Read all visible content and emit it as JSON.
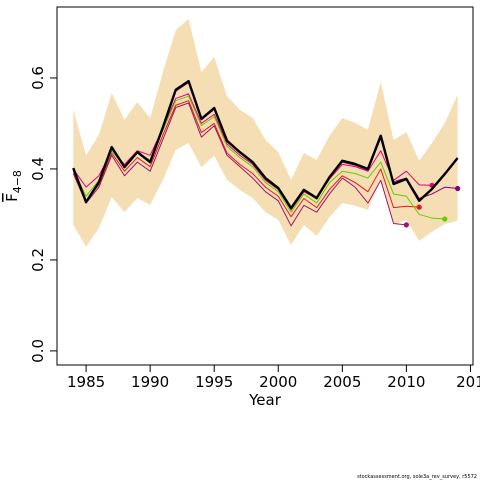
{
  "chart_data": {
    "type": "line",
    "xlabel": "Year",
    "ylabel": "F",
    "ylabel_subscript": "4−8",
    "footer": "stockassessment.org, sole3a_rev_survey, r5572",
    "x": [
      1984,
      1985,
      1986,
      1987,
      1988,
      1989,
      1990,
      1991,
      1992,
      1993,
      1994,
      1995,
      1996,
      1997,
      1998,
      1999,
      2000,
      2001,
      2002,
      2003,
      2004,
      2005,
      2006,
      2007,
      2008,
      2009,
      2010,
      2011,
      2012,
      2013,
      2014
    ],
    "band": {
      "color": "#f5deb3",
      "upper": [
        0.53,
        0.43,
        0.475,
        0.567,
        0.508,
        0.547,
        0.512,
        0.613,
        0.705,
        0.73,
        0.613,
        0.646,
        0.56,
        0.53,
        0.512,
        0.464,
        0.437,
        0.376,
        0.435,
        0.42,
        0.473,
        0.512,
        0.501,
        0.486,
        0.591,
        0.464,
        0.481,
        0.418,
        0.457,
        0.501,
        0.563
      ],
      "lower": [
        0.277,
        0.229,
        0.27,
        0.338,
        0.305,
        0.336,
        0.321,
        0.376,
        0.442,
        0.457,
        0.404,
        0.429,
        0.376,
        0.354,
        0.336,
        0.305,
        0.288,
        0.233,
        0.277,
        0.253,
        0.294,
        0.325,
        0.319,
        0.31,
        0.376,
        0.277,
        0.288,
        0.242,
        0.262,
        0.279,
        0.286
      ]
    },
    "series": [
      {
        "color": "#000000",
        "width": 2.4,
        "values": [
          0.402,
          0.327,
          0.371,
          0.448,
          0.404,
          0.437,
          0.415,
          0.492,
          0.574,
          0.593,
          0.51,
          0.534,
          0.462,
          0.437,
          0.415,
          0.38,
          0.358,
          0.314,
          0.354,
          0.336,
          0.382,
          0.418,
          0.411,
          0.4,
          0.473,
          0.367,
          0.378,
          0.33,
          0.356,
          0.389,
          0.424
        ]
      },
      {
        "color": "#800080",
        "width": 1,
        "end_marker": true,
        "values": [
          0.401,
          0.328,
          0.37,
          0.446,
          0.403,
          0.436,
          0.414,
          0.49,
          0.571,
          0.59,
          0.508,
          0.531,
          0.46,
          0.435,
          0.413,
          0.378,
          0.356,
          0.312,
          0.352,
          0.334,
          0.38,
          0.415,
          0.408,
          0.397,
          0.468,
          0.372,
          0.38,
          0.335,
          0.345,
          0.36,
          0.357
        ]
      },
      {
        "color": "#66cc00",
        "width": 1,
        "end_marker": true,
        "values": [
          0.398,
          0.34,
          0.375,
          0.44,
          0.405,
          0.435,
          0.42,
          0.485,
          0.55,
          0.56,
          0.495,
          0.515,
          0.45,
          0.425,
          0.405,
          0.37,
          0.35,
          0.305,
          0.345,
          0.325,
          0.37,
          0.395,
          0.39,
          0.38,
          0.415,
          0.345,
          0.34,
          0.3,
          0.292,
          0.29,
          null
        ]
      },
      {
        "color": "#e6007e",
        "width": 1,
        "end_marker": true,
        "values": [
          0.4,
          0.36,
          0.385,
          0.44,
          0.41,
          0.44,
          0.43,
          0.49,
          0.555,
          0.565,
          0.5,
          0.52,
          0.455,
          0.43,
          0.41,
          0.375,
          0.355,
          0.31,
          0.35,
          0.335,
          0.378,
          0.41,
          0.405,
          0.395,
          0.44,
          0.375,
          0.395,
          0.365,
          0.364,
          null,
          null
        ]
      },
      {
        "color": "#e41a1c",
        "width": 1,
        "end_marker": true,
        "values": [
          0.395,
          0.33,
          0.365,
          0.435,
          0.395,
          0.425,
          0.405,
          0.475,
          0.54,
          0.55,
          0.48,
          0.5,
          0.435,
          0.41,
          0.39,
          0.36,
          0.34,
          0.295,
          0.335,
          0.315,
          0.355,
          0.385,
          0.37,
          0.35,
          0.4,
          0.315,
          0.318,
          0.316,
          null,
          null,
          null
        ]
      },
      {
        "color": "#a0146e",
        "width": 1,
        "end_marker": true,
        "values": [
          0.39,
          0.325,
          0.36,
          0.43,
          0.385,
          0.415,
          0.395,
          0.465,
          0.535,
          0.545,
          0.47,
          0.495,
          0.43,
          0.405,
          0.38,
          0.35,
          0.33,
          0.275,
          0.32,
          0.305,
          0.345,
          0.38,
          0.36,
          0.325,
          0.375,
          0.28,
          0.277,
          null,
          null,
          null,
          null
        ]
      }
    ],
    "xlim": [
      1982.73,
      2015.2
    ],
    "xticks": [
      1985,
      1990,
      1995,
      2000,
      2005,
      2010,
      {
        "value": 2015,
        "label": "201"
      }
    ],
    "ylim": [
      -0.031,
      0.756
    ],
    "yticks": [
      {
        "value": 0,
        "label": "0.0"
      },
      0.2,
      0.4,
      0.6
    ],
    "box": true
  }
}
